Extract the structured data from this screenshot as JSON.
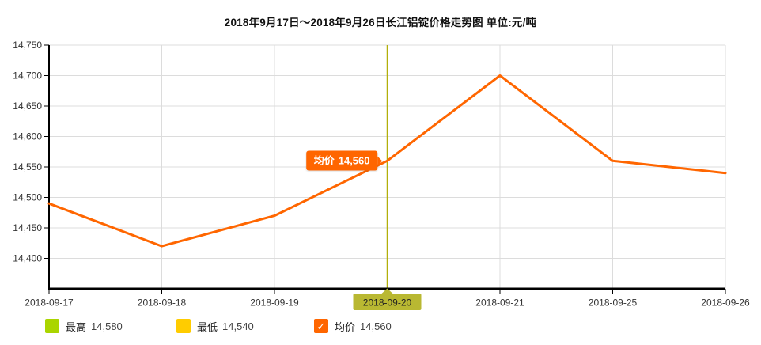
{
  "title": "2018年9月17日～2018年9月26日长江铝锭价格走势图 单位:元/吨",
  "chart_data": {
    "type": "line",
    "title": "2018年9月17日～2018年9月26日长江铝锭价格走势图",
    "unit_label": "单位:元/吨",
    "categories": [
      "2018-09-17",
      "2018-09-18",
      "2018-09-19",
      "2018-09-20",
      "2018-09-21",
      "2018-09-25",
      "2018-09-26"
    ],
    "series": [
      {
        "name": "均价",
        "color": "#ff6600",
        "values": [
          14490,
          14420,
          14470,
          14560,
          14700,
          14560,
          14540
        ]
      }
    ],
    "ylim": [
      14350,
      14750
    ],
    "yticks": [
      14400,
      14450,
      14500,
      14550,
      14600,
      14650,
      14700,
      14750
    ],
    "grid": true,
    "legend_position": "bottom",
    "selected": {
      "index": 3,
      "category": "2018-09-20",
      "values": {
        "最高": 14580,
        "最低": 14540,
        "均价": 14560
      }
    }
  },
  "tooltip": {
    "label": "均价",
    "value": "14,560"
  },
  "highlight": {
    "date": "2018-09-20",
    "line_color": "#b2af0a",
    "label_bg": "#b9b832"
  },
  "legend": {
    "items": [
      {
        "label": "最高",
        "value": "14,580",
        "color": "#aad500",
        "checked": false
      },
      {
        "label": "最低",
        "value": "14,540",
        "color": "#ffcc00",
        "checked": false
      },
      {
        "label": "均价",
        "value": "14,560",
        "color": "#ff6600",
        "checked": true,
        "check": "✓"
      }
    ]
  }
}
